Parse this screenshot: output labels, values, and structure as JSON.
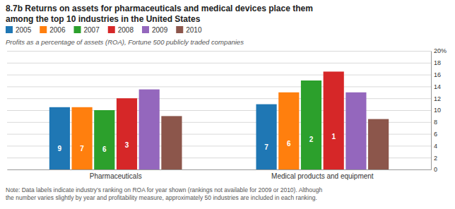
{
  "chart_data": {
    "type": "bar",
    "title": "8.7b Returns on assets for pharmaceuticals and medical devices place them\namong the top 10 industries in the United States",
    "subtitle": "Profits as a percentage of assets (ROA), Fortune 500 publicly traded companies",
    "annotations": [
      "Note: Data labels indicate industry’s ranking on ROA for year shown (rankings not available for 2009 or 2010). Although\nthe number varies slightly by year and profitability measure, approximately 50 industries are included in each ranking."
    ],
    "categories": [
      "Pharmaceuticals",
      "Medical products and equipment"
    ],
    "series": [
      {
        "name": "2005",
        "values": [
          10.5,
          11.0
        ],
        "ranks": [
          9,
          7
        ]
      },
      {
        "name": "2006",
        "values": [
          10.5,
          13.0
        ],
        "ranks": [
          7,
          6
        ]
      },
      {
        "name": "2007",
        "values": [
          10.0,
          15.0
        ],
        "ranks": [
          6,
          2
        ]
      },
      {
        "name": "2008",
        "values": [
          12.0,
          16.5
        ],
        "ranks": [
          3,
          1
        ]
      },
      {
        "name": "2009",
        "values": [
          13.5,
          13.0
        ],
        "ranks": [
          null,
          null
        ]
      },
      {
        "name": "2010",
        "values": [
          9.0,
          8.5
        ],
        "ranks": [
          null,
          null
        ]
      }
    ],
    "ylim": [
      0,
      20
    ],
    "yticks": [
      0,
      2,
      4,
      6,
      8,
      10,
      12,
      14,
      16,
      18,
      {
        "value": 20,
        "label": "20%"
      }
    ],
    "grid": true,
    "legend": "top"
  }
}
